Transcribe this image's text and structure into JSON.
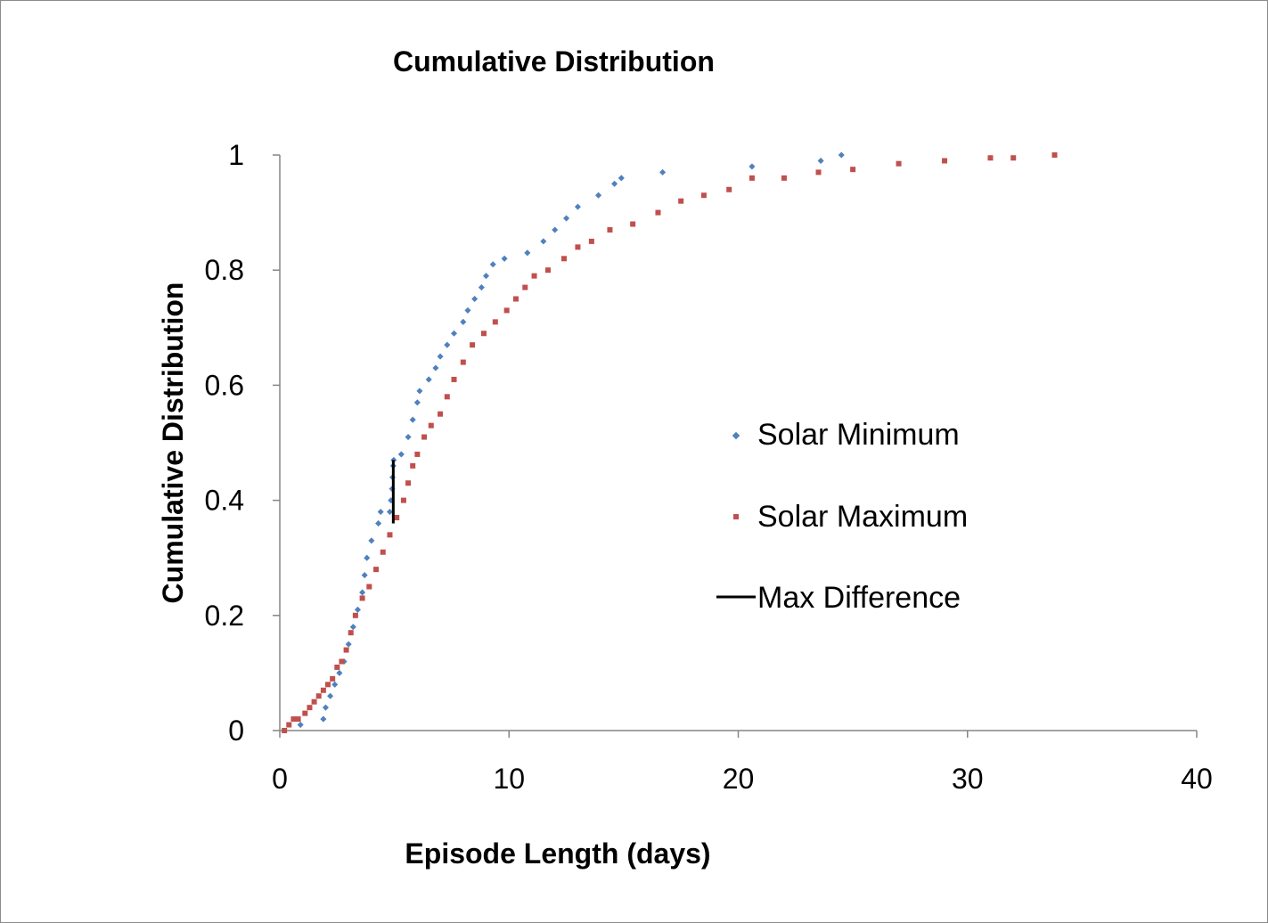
{
  "chart_data": {
    "type": "scatter",
    "title": "Cumulative Distribution",
    "xlabel": "Episode Length (days)",
    "ylabel": "Cumulative Distribution",
    "xlim": [
      0,
      40
    ],
    "ylim": [
      0,
      1
    ],
    "xticks": [
      "0",
      "10",
      "20",
      "30",
      "40"
    ],
    "yticks": [
      "0",
      "0.2",
      "0.4",
      "0.6",
      "0.8",
      "1"
    ],
    "grid": false,
    "legend_position": "right",
    "series": [
      {
        "name": "Solar Minimum",
        "color": "#4f81bd",
        "marker": "diamond",
        "points": [
          [
            0.9,
            0.01
          ],
          [
            1.9,
            0.02
          ],
          [
            2.0,
            0.04
          ],
          [
            2.2,
            0.06
          ],
          [
            2.4,
            0.08
          ],
          [
            2.6,
            0.1
          ],
          [
            2.8,
            0.12
          ],
          [
            3.0,
            0.15
          ],
          [
            3.2,
            0.18
          ],
          [
            3.4,
            0.21
          ],
          [
            3.6,
            0.24
          ],
          [
            3.7,
            0.27
          ],
          [
            3.8,
            0.3
          ],
          [
            4.0,
            0.33
          ],
          [
            4.3,
            0.36
          ],
          [
            4.4,
            0.38
          ],
          [
            4.8,
            0.38
          ],
          [
            4.85,
            0.4
          ],
          [
            4.9,
            0.42
          ],
          [
            4.92,
            0.44
          ],
          [
            4.95,
            0.46
          ],
          [
            4.97,
            0.47
          ],
          [
            5.3,
            0.48
          ],
          [
            5.6,
            0.51
          ],
          [
            5.8,
            0.54
          ],
          [
            6.0,
            0.57
          ],
          [
            6.1,
            0.59
          ],
          [
            6.5,
            0.61
          ],
          [
            6.8,
            0.63
          ],
          [
            7.0,
            0.65
          ],
          [
            7.3,
            0.67
          ],
          [
            7.6,
            0.69
          ],
          [
            8.0,
            0.71
          ],
          [
            8.2,
            0.73
          ],
          [
            8.5,
            0.75
          ],
          [
            8.8,
            0.77
          ],
          [
            9.0,
            0.79
          ],
          [
            9.3,
            0.81
          ],
          [
            9.8,
            0.82
          ],
          [
            10.8,
            0.83
          ],
          [
            11.5,
            0.85
          ],
          [
            12.0,
            0.87
          ],
          [
            12.5,
            0.89
          ],
          [
            13.0,
            0.91
          ],
          [
            13.9,
            0.93
          ],
          [
            14.6,
            0.95
          ],
          [
            14.9,
            0.96
          ],
          [
            16.7,
            0.97
          ],
          [
            20.6,
            0.98
          ],
          [
            23.6,
            0.99
          ],
          [
            24.5,
            1.0
          ]
        ]
      },
      {
        "name": "Solar Maximum",
        "color": "#c0504d",
        "marker": "square",
        "points": [
          [
            0.2,
            0.0
          ],
          [
            0.4,
            0.01
          ],
          [
            0.6,
            0.02
          ],
          [
            0.8,
            0.02
          ],
          [
            1.1,
            0.03
          ],
          [
            1.3,
            0.04
          ],
          [
            1.5,
            0.05
          ],
          [
            1.7,
            0.06
          ],
          [
            1.9,
            0.07
          ],
          [
            2.1,
            0.08
          ],
          [
            2.3,
            0.09
          ],
          [
            2.5,
            0.11
          ],
          [
            2.7,
            0.12
          ],
          [
            2.9,
            0.14
          ],
          [
            3.1,
            0.17
          ],
          [
            3.3,
            0.2
          ],
          [
            3.6,
            0.23
          ],
          [
            3.9,
            0.25
          ],
          [
            4.2,
            0.28
          ],
          [
            4.5,
            0.31
          ],
          [
            4.8,
            0.34
          ],
          [
            5.1,
            0.37
          ],
          [
            5.4,
            0.4
          ],
          [
            5.6,
            0.43
          ],
          [
            5.8,
            0.46
          ],
          [
            6.0,
            0.48
          ],
          [
            6.3,
            0.51
          ],
          [
            6.6,
            0.53
          ],
          [
            7.0,
            0.55
          ],
          [
            7.3,
            0.58
          ],
          [
            7.6,
            0.61
          ],
          [
            8.0,
            0.64
          ],
          [
            8.4,
            0.67
          ],
          [
            8.9,
            0.69
          ],
          [
            9.4,
            0.71
          ],
          [
            9.9,
            0.73
          ],
          [
            10.3,
            0.75
          ],
          [
            10.7,
            0.77
          ],
          [
            11.1,
            0.79
          ],
          [
            11.7,
            0.8
          ],
          [
            12.4,
            0.82
          ],
          [
            13.0,
            0.84
          ],
          [
            13.6,
            0.85
          ],
          [
            14.4,
            0.87
          ],
          [
            15.4,
            0.88
          ],
          [
            16.5,
            0.9
          ],
          [
            17.5,
            0.92
          ],
          [
            18.5,
            0.93
          ],
          [
            19.6,
            0.94
          ],
          [
            20.6,
            0.96
          ],
          [
            22.0,
            0.96
          ],
          [
            23.5,
            0.97
          ],
          [
            25.0,
            0.975
          ],
          [
            27.0,
            0.985
          ],
          [
            29.0,
            0.99
          ],
          [
            31.0,
            0.995
          ],
          [
            32.0,
            0.995
          ],
          [
            33.8,
            1.0
          ]
        ]
      },
      {
        "name": "Max Difference",
        "color": "#000000",
        "marker": "line",
        "points": [
          [
            4.95,
            0.36
          ],
          [
            4.95,
            0.47
          ]
        ]
      }
    ]
  }
}
